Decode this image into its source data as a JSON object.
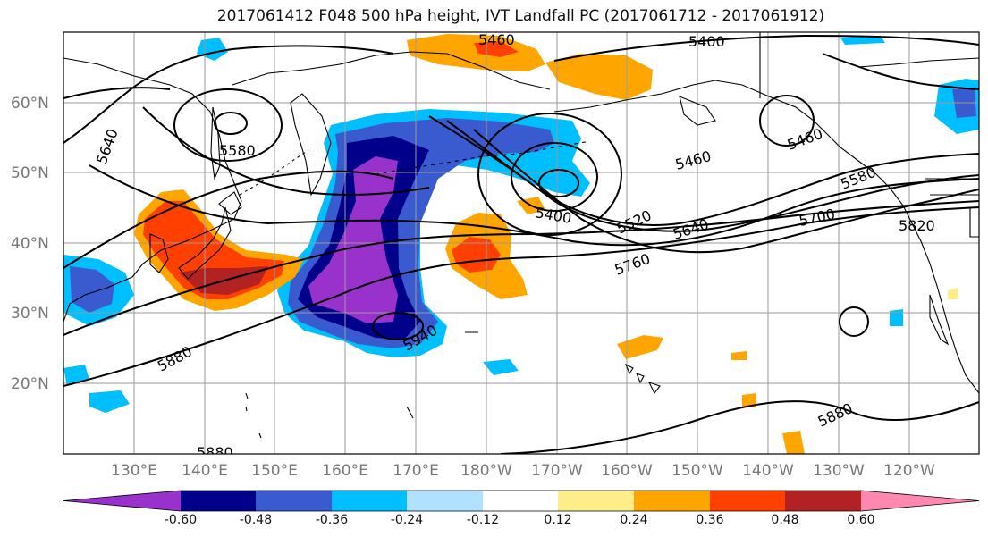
{
  "title": "2017061412 F048 500 hPa height, IVT Landfall PC (2017061712 - 2017061912)",
  "map": {
    "lat_labels": [
      "60°N",
      "50°N",
      "40°N",
      "30°N",
      "20°N"
    ],
    "lon_labels": [
      "130°E",
      "140°E",
      "150°E",
      "160°E",
      "170°E",
      "180°W",
      "170°W",
      "160°W",
      "150°W",
      "140°W",
      "130°W",
      "120°W"
    ],
    "contour_labels": [
      "5460",
      "5400",
      "5640",
      "5580",
      "5460",
      "5400",
      "5520",
      "5640",
      "5700",
      "5760",
      "5820",
      "5460",
      "5580",
      "5880",
      "5940",
      "5880",
      "5880"
    ],
    "contour_color": "#000000",
    "coastline_color": "#000000",
    "grid_color": "#9a9a9a"
  },
  "colorbar": {
    "tick_labels": [
      "-0.60",
      "-0.48",
      "-0.36",
      "-0.24",
      "-0.12",
      "0.12",
      "0.24",
      "0.36",
      "0.48",
      "0.60"
    ],
    "colors": [
      "#9932cc",
      "#00008b",
      "#3a5bcf",
      "#00bfff",
      "#b0e2ff",
      "#ffffff",
      "#ffec8b",
      "#ffa500",
      "#ff4000",
      "#b22222",
      "#ff88b0"
    ]
  }
}
